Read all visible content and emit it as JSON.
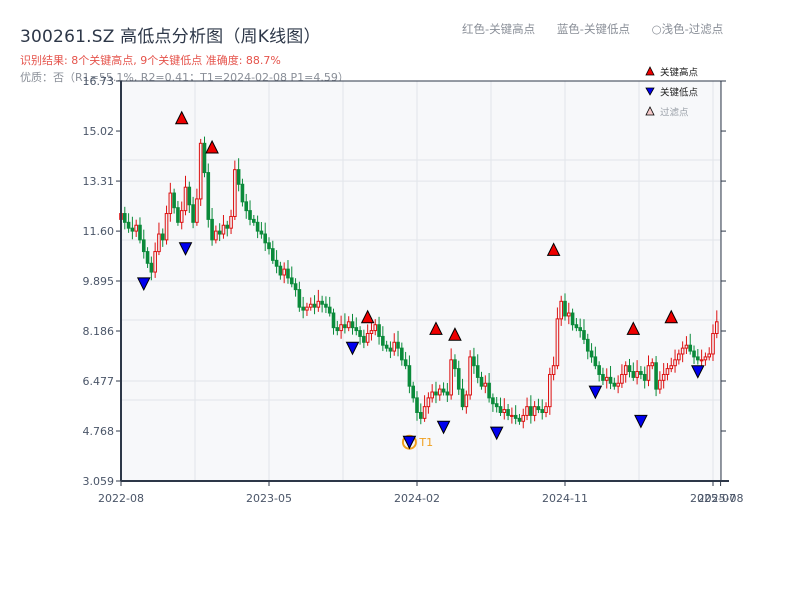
{
  "header": {
    "title": "300261.SZ 高低点分析图（周K线图）",
    "result_line": "识别结果: 8个关键高点, 9个关键低点  准确度: 88.7%",
    "quality_line": "优质：否（R1=55.1%, R2=0.41；T1=2024-02-08 P1=4.59）"
  },
  "top_legend": {
    "items": [
      "红色-关键高点",
      "蓝色-关键低点",
      "○浅色-过滤点"
    ]
  },
  "legend": {
    "items": [
      {
        "label": "关键高点",
        "marker": "triangle-up",
        "color": "#ee0000"
      },
      {
        "label": "关键低点",
        "marker": "triangle-down",
        "color": "#0000ee"
      },
      {
        "label": "过滤点",
        "marker": "triangle-up-hollow",
        "color": "#f4c9c9"
      }
    ]
  },
  "colors": {
    "up": "#dd1111",
    "down": "#0a8a3a",
    "high_marker": "#ee0000",
    "low_marker": "#0000ee",
    "t1_ring": "#f0a020",
    "axis": "#2d3748",
    "grid": "#e2e5ea",
    "plot_bg": "#f7f8fa"
  },
  "chart_data": {
    "type": "candlestick",
    "title": "300261.SZ 高低点分析图（周K线图）",
    "xlabel": "",
    "ylabel": "",
    "ylim": [
      3.059,
      16.73
    ],
    "y_ticks": [
      "3.059",
      "4.768",
      "6.477",
      "8.186",
      "9.895",
      "11.60",
      "13.31",
      "15.02",
      "16.73"
    ],
    "x_ticks": [
      "2022-08",
      "2023-05",
      "2024-02",
      "2024-11",
      "2025-07",
      "2025-08"
    ],
    "x_tick_pos": [
      0,
      39,
      78,
      117,
      156,
      158
    ],
    "grid": true,
    "legend_position": "upper right",
    "weekly_close": [
      12.2,
      11.9,
      11.7,
      11.6,
      11.8,
      11.3,
      10.9,
      10.5,
      10.2,
      10.9,
      11.5,
      11.3,
      12.2,
      12.9,
      12.4,
      11.9,
      12.3,
      13.1,
      12.5,
      11.9,
      12.7,
      14.6,
      13.6,
      12.0,
      11.3,
      11.6,
      11.5,
      11.8,
      11.7,
      12.1,
      13.7,
      13.2,
      12.6,
      12.3,
      12.0,
      11.9,
      11.6,
      11.5,
      11.2,
      11.0,
      10.6,
      10.4,
      10.1,
      10.3,
      10.0,
      9.8,
      9.6,
      9.0,
      8.9,
      9.0,
      9.1,
      9.0,
      9.2,
      9.1,
      9.0,
      8.8,
      8.3,
      8.2,
      8.4,
      8.3,
      8.5,
      8.3,
      8.2,
      8.0,
      7.8,
      8.1,
      8.2,
      8.4,
      8.0,
      7.7,
      7.6,
      7.5,
      7.8,
      7.6,
      7.2,
      7.0,
      6.3,
      5.9,
      5.4,
      5.2,
      5.6,
      5.9,
      6.1,
      6.0,
      6.2,
      6.1,
      6.0,
      7.2,
      6.9,
      6.2,
      5.6,
      6.0,
      7.3,
      7.0,
      6.6,
      6.3,
      6.4,
      5.9,
      5.7,
      5.6,
      5.4,
      5.5,
      5.3,
      5.3,
      5.2,
      5.1,
      5.3,
      5.6,
      5.3,
      5.6,
      5.5,
      5.4,
      5.6,
      6.7,
      7.0,
      8.6,
      9.2,
      8.7,
      8.8,
      8.4,
      8.3,
      8.2,
      7.9,
      7.5,
      7.3,
      7.0,
      6.7,
      6.5,
      6.6,
      6.4,
      6.3,
      6.4,
      6.7,
      7.0,
      6.8,
      6.6,
      6.8,
      6.7,
      6.5,
      7.0,
      7.1,
      6.2,
      6.5,
      6.7,
      6.9,
      7.0,
      7.2,
      7.4,
      7.6,
      7.7,
      7.5,
      7.3,
      7.2,
      7.2,
      7.3,
      7.4,
      8.1,
      8.5
    ],
    "key_highs": [
      {
        "week": 16,
        "price": 15.2
      },
      {
        "week": 24,
        "price": 14.2
      },
      {
        "week": 65,
        "price": 8.4
      },
      {
        "week": 83,
        "price": 8.0
      },
      {
        "week": 88,
        "price": 7.8
      },
      {
        "week": 114,
        "price": 10.7
      },
      {
        "week": 135,
        "price": 8.0
      },
      {
        "week": 145,
        "price": 8.4
      }
    ],
    "key_lows": [
      {
        "week": 6,
        "price": 10.0
      },
      {
        "week": 17,
        "price": 11.2
      },
      {
        "week": 61,
        "price": 7.8
      },
      {
        "week": 76,
        "price": 4.59,
        "label": "T1"
      },
      {
        "week": 85,
        "price": 5.1
      },
      {
        "week": 99,
        "price": 4.9
      },
      {
        "week": 125,
        "price": 6.3
      },
      {
        "week": 137,
        "price": 5.3
      },
      {
        "week": 152,
        "price": 7.0
      }
    ],
    "annotations": [
      {
        "text": "T1",
        "date": "2024-02-08",
        "price": 4.59
      }
    ]
  }
}
